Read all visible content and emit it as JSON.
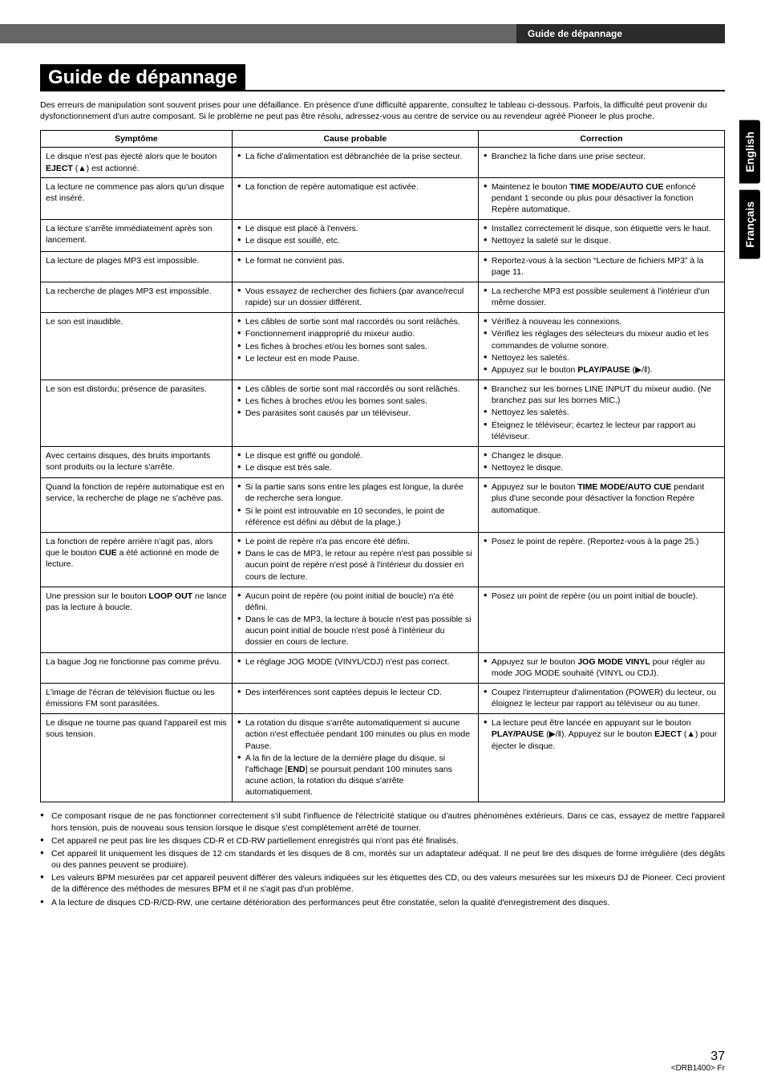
{
  "header": {
    "breadcrumb": "Guide de dépannage"
  },
  "lang_tabs": [
    "English",
    "Français"
  ],
  "title": "Guide de dépannage",
  "intro": "Des erreurs de manipulation sont souvent prises pour une défaillance. En présence d'une difficulté apparente, consultez le tableau ci-dessous. Parfois, la difficulté peut provenir du dysfonctionnement d'un autre composant. Si le problème ne peut pas être résolu, adressez-vous au centre de service ou au revendeur agréé Pioneer le plus proche.",
  "table": {
    "columns": [
      "Symptôme",
      "Cause probable",
      "Correction"
    ],
    "rows": [
      {
        "symptome_html": "Le disque n'est pas éjecté alors que le bouton <b>EJECT</b> (<span class='eject'>▲</span>) est actionné.",
        "cause": [
          "La fiche d'alimentation est débranchée de la prise secteur."
        ],
        "correction": [
          "Branchez la fiche dans une prise secteur."
        ]
      },
      {
        "symptome_html": "La lecture ne commence pas alors qu'un disque est inséré.",
        "cause": [
          "La fonction de repère automatique est activée."
        ],
        "correction_html": [
          "Maintenez le bouton <b>TIME MODE/AUTO CUE</b> enfoncé pendant 1 seconde ou plus pour désactiver la fonction Repère automatique."
        ]
      },
      {
        "symptome_html": "La lecture s'arrête immédiatement après son lancement.",
        "cause": [
          "Le disque est placé à l'envers.",
          "Le disque est souillé, etc."
        ],
        "correction": [
          "Installez correctement le disque, son étiquette vers le haut.",
          "Nettoyez la saleté sur le disque."
        ]
      },
      {
        "symptome_html": "La lecture de plages MP3 est impossible.",
        "cause": [
          "Le format ne convient pas."
        ],
        "correction": [
          "Reportez-vous à la section “Lecture de fichiers MP3” à la page 11."
        ]
      },
      {
        "symptome_html": "La recherche de plages MP3 est impossible.",
        "cause": [
          "Vous essayez de rechercher des fichiers (par avance/recul rapide) sur un dossier différent."
        ],
        "correction": [
          "La recherche MP3 est possible seulement à l'intérieur d'un même dossier."
        ]
      },
      {
        "symptome_html": "Le son est inaudible.",
        "cause": [
          "Les câbles de sortie sont mal raccordés ou sont relâchés.",
          "Fonctionnement inapproprié du mixeur audio.",
          "Les fiches à broches et/ou les bornes sont sales.",
          "Le lecteur est en mode Pause."
        ],
        "correction_html": [
          "Vérifiez à nouveau les connexions.",
          "Vérifiez les réglages des sélecteurs du mixeur audio et les commandes de volume sonore.",
          "Nettoyez les saletés.",
          "Appuyez sur le bouton <b>PLAY/PAUSE</b> (▶/‖)."
        ]
      },
      {
        "symptome_html": "Le son est distordu; présence de parasites.",
        "cause": [
          "Les câbles de sortie sont mal raccordés ou sont relâchés.",
          "Les fiches à broches et/ou les bornes sont sales.",
          "Des parasites sont causés par un téléviseur."
        ],
        "correction": [
          "Branchez sur les bornes LINE INPUT du mixeur audio. (Ne branchez pas sur les bornes MIC.)",
          "Nettoyez les saletés.",
          "Éteignez le téléviseur; écartez le lecteur par rapport au téléviseur."
        ]
      },
      {
        "symptome_html": "Avec certains disques, des bruits importants sont produits ou la lecture s'arrête.",
        "cause": [
          "Le disque est griffé ou gondolé.",
          "Le disque est très sale."
        ],
        "correction": [
          "Changez le disque.",
          "Nettoyez le disque."
        ]
      },
      {
        "symptome_html": "Quand la fonction de repère automatique est en service, la recherche de plage ne s'achève pas.",
        "cause": [
          "Si la partie sans sons entre les plages est longue, la durée de recherche sera longue.",
          "Si le point est introuvable en 10 secondes, le point de référence est défini au début de la plage.)"
        ],
        "correction_html": [
          "Appuyez sur le bouton <b>TIME MODE/AUTO CUE</b> pendant plus d'une seconde pour désactiver la fonction Repère automatique."
        ]
      },
      {
        "symptome_html": "La fonction de repère arrière n'agit pas, alors que le bouton <b>CUE</b> a été actionné en mode de lecture.",
        "cause": [
          "Le point de repère n'a pas encore été défini.",
          "Dans le cas de MP3, le retour au repère n'est pas possible si aucun point de repère n'est posé à l'intérieur du dossier en cours de lecture."
        ],
        "correction": [
          "Posez le point de repère. (Reportez-vous à la page 25.)"
        ]
      },
      {
        "symptome_html": "Une pression sur le bouton <b>LOOP OUT</b> ne lance pas la lecture à boucle.",
        "cause": [
          "Aucun point de repère (ou point initial de boucle) n'a été défini.",
          "Dans le cas de MP3, la lecture à boucle n'est pas possible si aucun point initial de boucle n'est posé à l'intérieur du dossier en cours de lecture."
        ],
        "correction": [
          "Posez un point de repère (ou un point initial de boucle)."
        ]
      },
      {
        "symptome_html": "La bague Jog ne fonctionne pas comme prévu.",
        "cause": [
          "Le réglage JOG MODE (VINYL/CDJ) n'est pas correct."
        ],
        "correction_html": [
          "Appuyez sur le bouton <b>JOG MODE VINYL</b> pour régler au mode JOG MODE souhaité (VINYL ou CDJ)."
        ]
      },
      {
        "symptome_html": "L'image de l'écran de télévision fluctue ou les émissions FM sont parasitées.",
        "cause": [
          "Des interférences sont captées depuis le lecteur CD."
        ],
        "correction": [
          "Coupez l'interrupteur d'alimentation (POWER) du lecteur, ou éloignez le lecteur par rapport au téléviseur ou au tuner."
        ]
      },
      {
        "symptome_html": "Le disque ne tourne pas quand l'appareil est mis sous tension.",
        "cause_html": [
          "La rotation du disque s'arrête automatiquement si aucune action n'est effectuée pendant 100 minutes ou plus en mode Pause.",
          "A la fin de la lecture de la dernière plage du disque, si l'affichage [<b>END</b>] se poursuit pendant 100 minutes sans acune action, la rotation du disque s'arrête automatiquement."
        ],
        "correction_html": [
          "La lecture peut être lancée en appuyant sur le bouton <b>PLAY/PAUSE</b> (▶/‖). Appuyez sur le bouton <b>EJECT</b> (<span class='eject'>▲</span>) pour éjecter le disque."
        ]
      }
    ]
  },
  "notes": [
    "Ce composant risque de ne pas fonctionner correctement s'il subit l'influence de l'électricité statique ou d'autres phénomènes extérieurs. Dans ce cas, essayez de mettre l'appareil hors tension, puis de nouveau sous tension lorsque le disque s'est complètement arrêté de tourner.",
    "Cet appareil ne peut pas lire les disques CD-R et CD-RW partiellement enregistrés qui n'ont pas été finalisés.",
    "Cet appareil lit uniquement les disques de 12 cm standards et les disques de 8 cm, montés sur un adaptateur adéquat. Il ne peut lire des disques de forme irrégulière (des dégâts ou des pannes peuvent se produire).",
    "Les valeurs BPM mesurées par cet appareil peuvent différer des valeurs indiquées sur les étiquettes des CD, ou des valeurs mesurées sur les mixeurs DJ de Pioneer. Ceci provient de la différence des méthodes de mesures BPM et il ne s'agit pas d'un problème.",
    "A la lecture de disques CD-R/CD-RW, une certaine détérioration des performances peut être constatée, selon la qualité d'enregistrement des disques."
  ],
  "footer": {
    "page": "37",
    "code": "<DRB1400> Fr"
  },
  "colors": {
    "topbar_grey": "#666666",
    "topbar_dark": "#2b2b2b",
    "tab_black": "#000000",
    "text": "#000000",
    "bg": "#ffffff"
  }
}
